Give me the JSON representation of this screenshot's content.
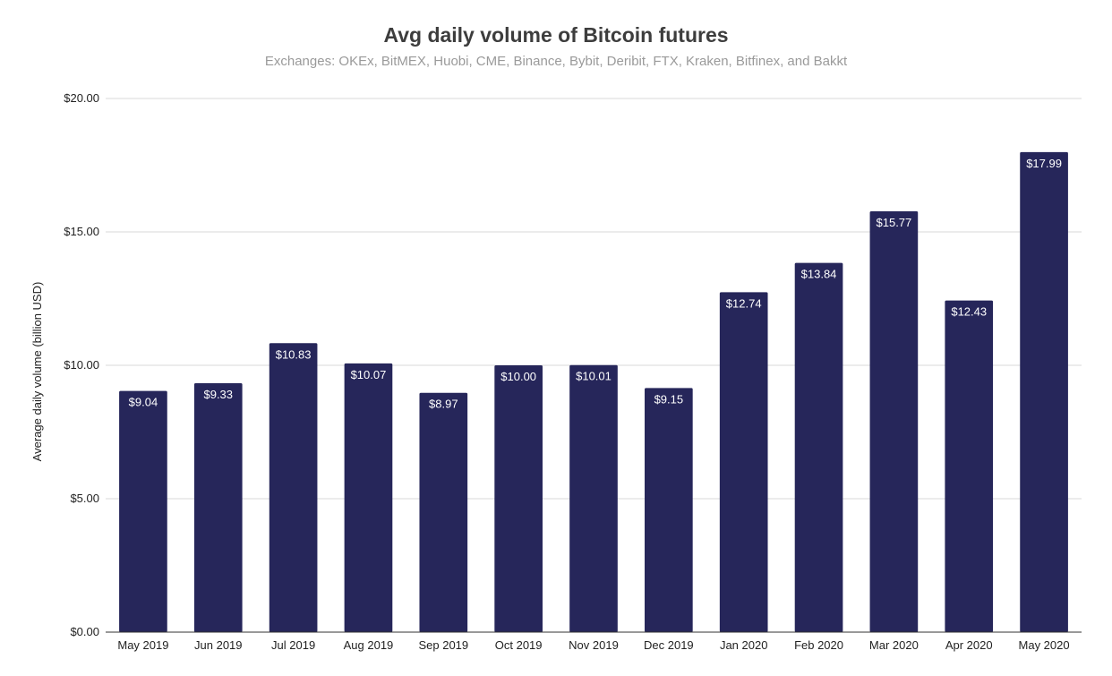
{
  "chart_data": {
    "type": "bar",
    "title": "Avg daily volume of Bitcoin futures",
    "subtitle": "Exchanges: OKEx, BitMEX, Huobi, CME, Binance, Bybit, Deribit, FTX, Kraken, Bitfinex, and Bakkt",
    "xlabel": "",
    "ylabel": "Average daily volume (billion USD)",
    "ylim": [
      0,
      20
    ],
    "yticks": [
      0,
      5,
      10,
      15,
      20
    ],
    "ytick_labels": [
      "$0.00",
      "$5.00",
      "$10.00",
      "$15.00",
      "$20.00"
    ],
    "grid": true,
    "legend": "none",
    "bar_color": "#26265a",
    "categories": [
      "May 2019",
      "Jun 2019",
      "Jul 2019",
      "Aug 2019",
      "Sep 2019",
      "Oct 2019",
      "Nov 2019",
      "Dec 2019",
      "Jan 2020",
      "Feb 2020",
      "Mar 2020",
      "Apr 2020",
      "May 2020"
    ],
    "values": [
      9.04,
      9.33,
      10.83,
      10.07,
      8.97,
      10.0,
      10.01,
      9.15,
      12.74,
      13.84,
      15.77,
      12.43,
      17.99
    ],
    "data_labels": [
      "$9.04",
      "$9.33",
      "$10.83",
      "$10.07",
      "$8.97",
      "$10.00",
      "$10.01",
      "$9.15",
      "$12.74",
      "$13.84",
      "$15.77",
      "$12.43",
      "$17.99"
    ]
  }
}
